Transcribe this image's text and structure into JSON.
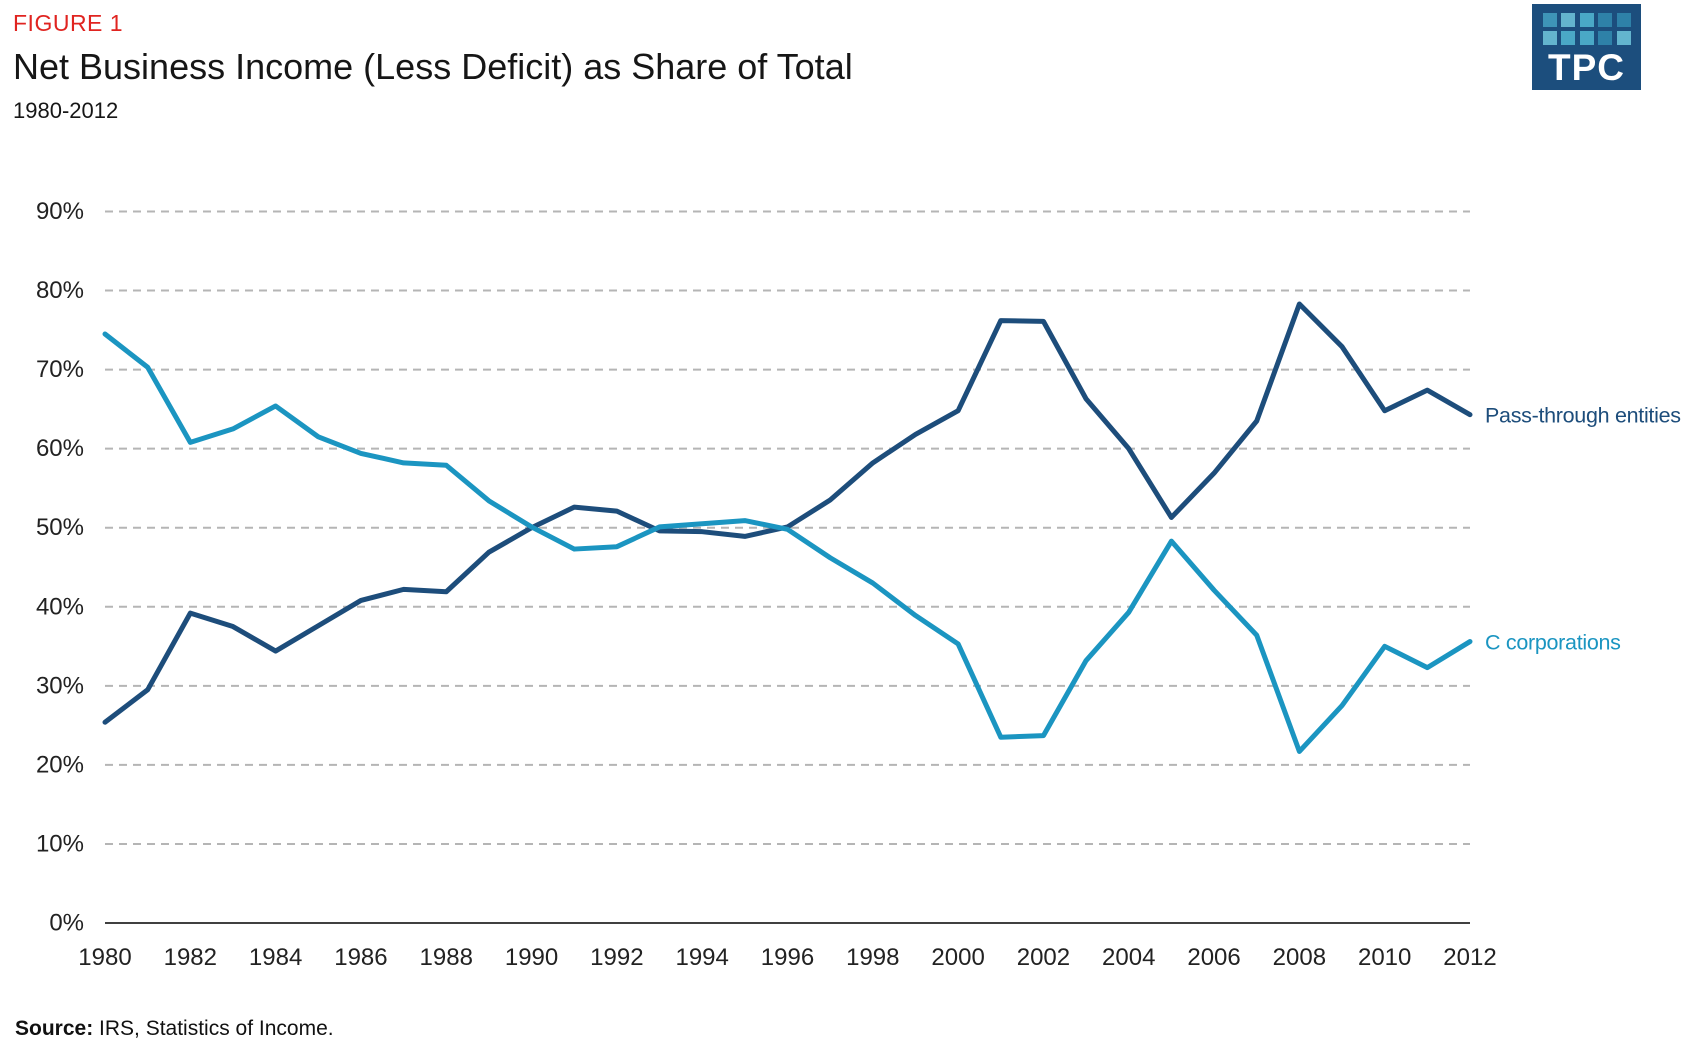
{
  "figure_label": "FIGURE 1",
  "title": "Net Business Income (Less Deficit) as Share of Total",
  "subtitle": "1980-2012",
  "logo": {
    "text": "TPC",
    "bg_color": "#1C4E7D",
    "square_colors": [
      "#3E95B8",
      "#63B5CE",
      "#4AA8C6",
      "#2E81A8",
      "#2E81A8",
      "#63B5CE",
      "#4AA8C6",
      "#4AA8C6",
      "#2E81A8",
      "#63B5CE"
    ]
  },
  "source": {
    "label": "Source:",
    "text": " IRS, Statistics of Income."
  },
  "colors": {
    "figure_red": "#E02420",
    "gridline": "#B5B5B5",
    "axis": "#404040",
    "pass_through": "#1D4D7B",
    "c_corporations": "#1B95C1"
  },
  "chart_data": {
    "type": "line",
    "title": "Net Business Income (Less Deficit) as Share of Total",
    "subtitle": "1980-2012",
    "xlabel": "",
    "ylabel": "",
    "xlim": [
      1980,
      2012
    ],
    "ylim": [
      0,
      90
    ],
    "y_tick_step": 10,
    "y_tick_suffix": "%",
    "x_ticks": [
      1980,
      1982,
      1984,
      1986,
      1988,
      1990,
      1992,
      1994,
      1996,
      1998,
      2000,
      2002,
      2004,
      2006,
      2008,
      2010,
      2012
    ],
    "grid": "horizontal-dashed",
    "legend": "inline-right-labels",
    "x": [
      1980,
      1981,
      1982,
      1983,
      1984,
      1985,
      1986,
      1987,
      1988,
      1989,
      1990,
      1991,
      1992,
      1993,
      1994,
      1995,
      1996,
      1997,
      1998,
      1999,
      2000,
      2001,
      2002,
      2003,
      2004,
      2005,
      2006,
      2007,
      2008,
      2009,
      2010,
      2011,
      2012
    ],
    "series": [
      {
        "name": "Pass-through entities",
        "color": "#1D4D7B",
        "values": [
          25.4,
          29.5,
          39.2,
          37.5,
          34.4,
          37.6,
          40.8,
          42.2,
          41.9,
          46.9,
          50.0,
          52.6,
          52.1,
          49.6,
          49.5,
          48.9,
          50.1,
          53.5,
          58.2,
          61.8,
          64.8,
          76.2,
          76.1,
          66.3,
          60.0,
          51.3,
          56.9,
          63.5,
          78.3,
          72.9,
          64.8,
          67.4,
          64.3
        ]
      },
      {
        "name": "C corporations",
        "color": "#1B95C1",
        "values": [
          74.5,
          70.3,
          60.8,
          62.5,
          65.4,
          61.5,
          59.4,
          58.2,
          57.9,
          53.4,
          50.1,
          47.3,
          47.6,
          50.1,
          50.5,
          50.9,
          49.8,
          46.2,
          43.0,
          38.9,
          35.3,
          23.5,
          23.7,
          33.2,
          39.3,
          48.3,
          42.1,
          36.4,
          21.7,
          27.5,
          35.0,
          32.3,
          35.6
        ]
      }
    ]
  }
}
